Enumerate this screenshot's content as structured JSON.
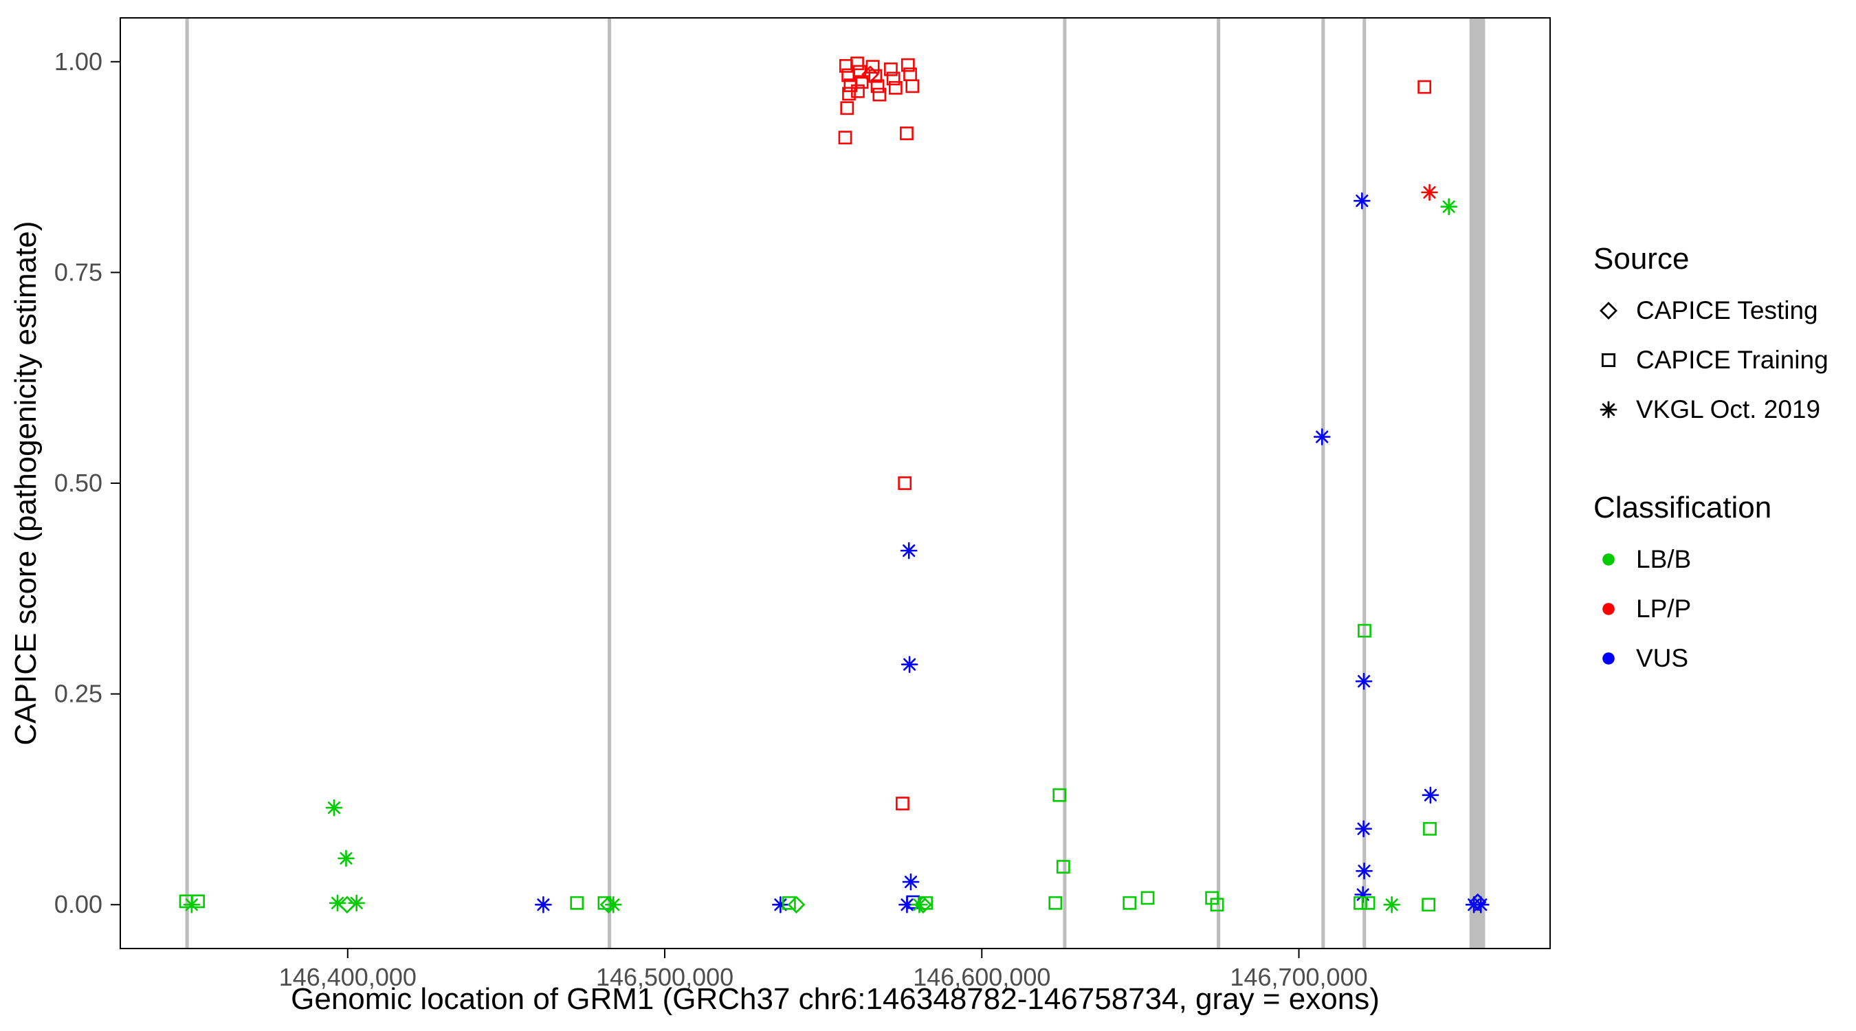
{
  "chart_data": {
    "type": "scatter",
    "title": "",
    "xlabel": "Genomic location of GRM1 (GRCh37 chr6:146348782-146758734, gray = exons)",
    "ylabel": "CAPICE score (pathogenicity estimate)",
    "x_domain": [
      146328282,
      146779234
    ],
    "y_domain": [
      -0.052,
      1.052
    ],
    "grid": false,
    "legend_position": "right",
    "x_ticks": [
      {
        "value": 146400000,
        "label": "146,400,000"
      },
      {
        "value": 146500000,
        "label": "146,500,000"
      },
      {
        "value": 146600000,
        "label": "146,600,000"
      },
      {
        "value": 146700000,
        "label": "146,700,000"
      }
    ],
    "y_ticks": [
      {
        "value": 0.0,
        "label": "0.00"
      },
      {
        "value": 0.25,
        "label": "0.25"
      },
      {
        "value": 0.5,
        "label": "0.50"
      },
      {
        "value": 0.75,
        "label": "0.75"
      },
      {
        "value": 1.0,
        "label": "1.00"
      }
    ],
    "style": {
      "exon_color": "#bdbdbd",
      "panel_border": "#000000",
      "colors": {
        "LB/B": "#00cc00",
        "LP/P": "#ff0000",
        "VUS": "#0000ff"
      },
      "shapes": {
        "CAPICE Testing": "diamond",
        "CAPICE Training": "square",
        "VKGL Oct. 2019": "asterisk"
      }
    },
    "exons": [
      [
        146348782,
        146349900
      ],
      [
        146482000,
        146483100
      ],
      [
        146625600,
        146626700
      ],
      [
        146674100,
        146675200
      ],
      [
        146707100,
        146708200
      ],
      [
        146720100,
        146721200
      ],
      [
        146753800,
        146758734
      ]
    ],
    "legend": {
      "source": {
        "title": "Source",
        "items": [
          {
            "label": "CAPICE Testing",
            "shape": "diamond"
          },
          {
            "label": "CAPICE Training",
            "shape": "square"
          },
          {
            "label": "VKGL Oct. 2019",
            "shape": "asterisk"
          }
        ]
      },
      "classification": {
        "title": "Classification",
        "items": [
          {
            "label": "LB/B",
            "color": "#00cc00"
          },
          {
            "label": "LP/P",
            "color": "#ff0000"
          },
          {
            "label": "VUS",
            "color": "#0000ff"
          }
        ]
      }
    },
    "points": [
      {
        "x": 146349000,
        "y": 0.004,
        "source": "CAPICE Training",
        "classification": "LB/B"
      },
      {
        "x": 146352800,
        "y": 0.004,
        "source": "CAPICE Training",
        "classification": "LB/B"
      },
      {
        "x": 146350800,
        "y": 0.0,
        "source": "VKGL Oct. 2019",
        "classification": "LB/B"
      },
      {
        "x": 146395700,
        "y": 0.115,
        "source": "VKGL Oct. 2019",
        "classification": "LB/B"
      },
      {
        "x": 146399500,
        "y": 0.055,
        "source": "VKGL Oct. 2019",
        "classification": "LB/B"
      },
      {
        "x": 146396800,
        "y": 0.002,
        "source": "VKGL Oct. 2019",
        "classification": "LB/B"
      },
      {
        "x": 146402800,
        "y": 0.002,
        "source": "VKGL Oct. 2019",
        "classification": "LB/B"
      },
      {
        "x": 146399800,
        "y": 0.0,
        "source": "CAPICE Testing",
        "classification": "LB/B"
      },
      {
        "x": 146461700,
        "y": 0.0,
        "source": "VKGL Oct. 2019",
        "classification": "VUS"
      },
      {
        "x": 146472300,
        "y": 0.002,
        "source": "CAPICE Training",
        "classification": "LB/B"
      },
      {
        "x": 146481000,
        "y": 0.002,
        "source": "CAPICE Training",
        "classification": "LB/B"
      },
      {
        "x": 146483800,
        "y": 0.0,
        "source": "VKGL Oct. 2019",
        "classification": "LB/B"
      },
      {
        "x": 146482300,
        "y": 0.0,
        "source": "CAPICE Testing",
        "classification": "LB/B"
      },
      {
        "x": 146536500,
        "y": 0.0,
        "source": "VKGL Oct. 2019",
        "classification": "VUS"
      },
      {
        "x": 146539200,
        "y": 0.002,
        "source": "CAPICE Training",
        "classification": "LB/B"
      },
      {
        "x": 146541500,
        "y": 0.0,
        "source": "CAPICE Testing",
        "classification": "LB/B"
      },
      {
        "x": 146557200,
        "y": 0.995,
        "source": "CAPICE Training",
        "classification": "LP/P"
      },
      {
        "x": 146557900,
        "y": 0.984,
        "source": "CAPICE Training",
        "classification": "LP/P"
      },
      {
        "x": 146558600,
        "y": 0.972,
        "source": "CAPICE Training",
        "classification": "LP/P"
      },
      {
        "x": 146558100,
        "y": 0.962,
        "source": "CAPICE Training",
        "classification": "LP/P"
      },
      {
        "x": 146560700,
        "y": 0.998,
        "source": "CAPICE Training",
        "classification": "LP/P"
      },
      {
        "x": 146561400,
        "y": 0.988,
        "source": "CAPICE Training",
        "classification": "LP/P"
      },
      {
        "x": 146562100,
        "y": 0.976,
        "source": "CAPICE Training",
        "classification": "LP/P"
      },
      {
        "x": 146560900,
        "y": 0.965,
        "source": "CAPICE Training",
        "classification": "LP/P"
      },
      {
        "x": 146565600,
        "y": 0.994,
        "source": "CAPICE Training",
        "classification": "LP/P"
      },
      {
        "x": 146566400,
        "y": 0.983,
        "source": "CAPICE Training",
        "classification": "LP/P"
      },
      {
        "x": 146567100,
        "y": 0.971,
        "source": "CAPICE Training",
        "classification": "LP/P"
      },
      {
        "x": 146567700,
        "y": 0.961,
        "source": "CAPICE Training",
        "classification": "LP/P"
      },
      {
        "x": 146571300,
        "y": 0.991,
        "source": "CAPICE Training",
        "classification": "LP/P"
      },
      {
        "x": 146572100,
        "y": 0.98,
        "source": "CAPICE Training",
        "classification": "LP/P"
      },
      {
        "x": 146572800,
        "y": 0.969,
        "source": "CAPICE Training",
        "classification": "LP/P"
      },
      {
        "x": 146576700,
        "y": 0.996,
        "source": "CAPICE Training",
        "classification": "LP/P"
      },
      {
        "x": 146577400,
        "y": 0.985,
        "source": "CAPICE Training",
        "classification": "LP/P"
      },
      {
        "x": 146578100,
        "y": 0.971,
        "source": "CAPICE Training",
        "classification": "LP/P"
      },
      {
        "x": 146557500,
        "y": 0.945,
        "source": "CAPICE Training",
        "classification": "LP/P"
      },
      {
        "x": 146556900,
        "y": 0.91,
        "source": "CAPICE Training",
        "classification": "LP/P"
      },
      {
        "x": 146576300,
        "y": 0.915,
        "source": "CAPICE Training",
        "classification": "LP/P"
      },
      {
        "x": 146575700,
        "y": 0.5,
        "source": "CAPICE Training",
        "classification": "LP/P"
      },
      {
        "x": 146575000,
        "y": 0.12,
        "source": "CAPICE Training",
        "classification": "LP/P"
      },
      {
        "x": 146564800,
        "y": 0.985,
        "source": "CAPICE Testing",
        "classification": "LP/P"
      },
      {
        "x": 146577000,
        "y": 0.42,
        "source": "VKGL Oct. 2019",
        "classification": "VUS"
      },
      {
        "x": 146577200,
        "y": 0.285,
        "source": "VKGL Oct. 2019",
        "classification": "VUS"
      },
      {
        "x": 146577600,
        "y": 0.027,
        "source": "VKGL Oct. 2019",
        "classification": "VUS"
      },
      {
        "x": 146576400,
        "y": 0.0,
        "source": "VKGL Oct. 2019",
        "classification": "VUS"
      },
      {
        "x": 146578300,
        "y": 0.003,
        "source": "CAPICE Training",
        "classification": "VUS"
      },
      {
        "x": 146580300,
        "y": 0.0,
        "source": "VKGL Oct. 2019",
        "classification": "LB/B"
      },
      {
        "x": 146581500,
        "y": 0.0,
        "source": "CAPICE Testing",
        "classification": "LB/B"
      },
      {
        "x": 146582400,
        "y": 0.002,
        "source": "CAPICE Training",
        "classification": "LB/B"
      },
      {
        "x": 146624500,
        "y": 0.13,
        "source": "CAPICE Training",
        "classification": "LB/B"
      },
      {
        "x": 146625700,
        "y": 0.045,
        "source": "CAPICE Training",
        "classification": "LB/B"
      },
      {
        "x": 146623200,
        "y": 0.002,
        "source": "CAPICE Training",
        "classification": "LB/B"
      },
      {
        "x": 146646600,
        "y": 0.002,
        "source": "CAPICE Training",
        "classification": "LB/B"
      },
      {
        "x": 146652300,
        "y": 0.008,
        "source": "CAPICE Training",
        "classification": "LB/B"
      },
      {
        "x": 146672600,
        "y": 0.008,
        "source": "CAPICE Training",
        "classification": "LB/B"
      },
      {
        "x": 146674200,
        "y": 0.0,
        "source": "CAPICE Training",
        "classification": "LB/B"
      },
      {
        "x": 146707300,
        "y": 0.555,
        "source": "VKGL Oct. 2019",
        "classification": "VUS"
      },
      {
        "x": 146719900,
        "y": 0.835,
        "source": "VKGL Oct. 2019",
        "classification": "VUS"
      },
      {
        "x": 146720700,
        "y": 0.325,
        "source": "CAPICE Training",
        "classification": "LB/B"
      },
      {
        "x": 146720500,
        "y": 0.265,
        "source": "VKGL Oct. 2019",
        "classification": "VUS"
      },
      {
        "x": 146720400,
        "y": 0.09,
        "source": "VKGL Oct. 2019",
        "classification": "VUS"
      },
      {
        "x": 146720600,
        "y": 0.04,
        "source": "VKGL Oct. 2019",
        "classification": "VUS"
      },
      {
        "x": 146720200,
        "y": 0.012,
        "source": "VKGL Oct. 2019",
        "classification": "VUS"
      },
      {
        "x": 146719400,
        "y": 0.002,
        "source": "CAPICE Training",
        "classification": "LB/B"
      },
      {
        "x": 146721900,
        "y": 0.002,
        "source": "CAPICE Training",
        "classification": "LB/B"
      },
      {
        "x": 146729300,
        "y": 0.0,
        "source": "VKGL Oct. 2019",
        "classification": "LB/B"
      },
      {
        "x": 146739600,
        "y": 0.97,
        "source": "CAPICE Training",
        "classification": "LP/P"
      },
      {
        "x": 146741200,
        "y": 0.845,
        "source": "VKGL Oct. 2019",
        "classification": "LP/P"
      },
      {
        "x": 146747300,
        "y": 0.828,
        "source": "VKGL Oct. 2019",
        "classification": "LB/B"
      },
      {
        "x": 146741500,
        "y": 0.13,
        "source": "VKGL Oct. 2019",
        "classification": "VUS"
      },
      {
        "x": 146741300,
        "y": 0.09,
        "source": "CAPICE Training",
        "classification": "LB/B"
      },
      {
        "x": 146740900,
        "y": 0.0,
        "source": "CAPICE Training",
        "classification": "LB/B"
      },
      {
        "x": 146755200,
        "y": 0.0,
        "source": "VKGL Oct. 2019",
        "classification": "VUS"
      },
      {
        "x": 146757400,
        "y": 0.0,
        "source": "VKGL Oct. 2019",
        "classification": "VUS"
      },
      {
        "x": 146756400,
        "y": 0.003,
        "source": "CAPICE Testing",
        "classification": "VUS"
      }
    ]
  }
}
